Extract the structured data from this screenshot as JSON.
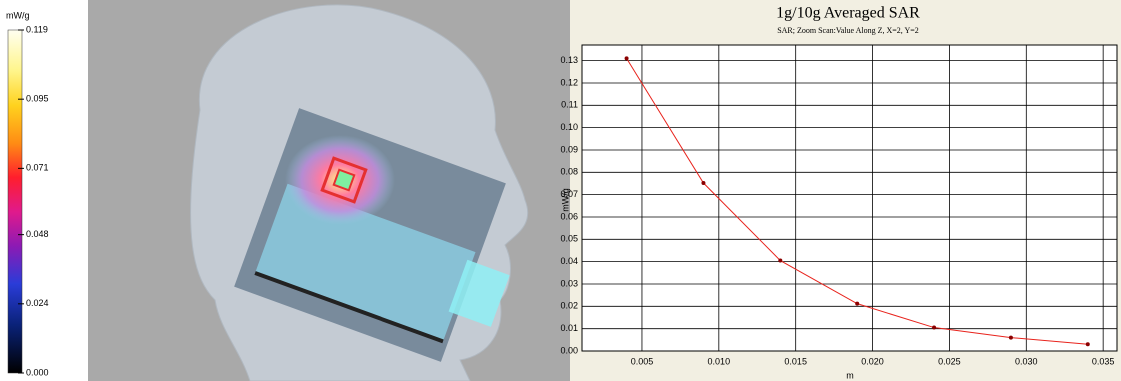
{
  "colorbar": {
    "unit": "mW/g",
    "lim": [
      0,
      0.119
    ],
    "ticks": [
      0.119,
      0.095,
      0.071,
      0.048,
      0.024,
      {
        "value": 0,
        "label": "0.000"
      }
    ]
  },
  "chart_data": {
    "type": "line",
    "title": "1g/10g Averaged SAR",
    "subtitle": "SAR; Zoom Scan:Value Along Z, X=2, Y=2",
    "xlabel": "m",
    "ylabel": "mW/g",
    "x": [
      0.004,
      0.009,
      0.014,
      0.019,
      0.024,
      0.029,
      0.034
    ],
    "series": [
      {
        "name": "SAR",
        "color": "#e8231c",
        "values": [
          0.131,
          0.0752,
          0.0405,
          0.0212,
          0.0105,
          0.006,
          0.003
        ]
      }
    ],
    "xlim": [
      0.0011,
      0.0359
    ],
    "ylim": [
      0,
      0.137
    ],
    "xticks": [
      0.005,
      {
        "value": 0.01,
        "label": "0.010"
      },
      0.015,
      {
        "value": 0.02,
        "label": "0.020"
      },
      0.025,
      {
        "value": 0.03,
        "label": "0.030"
      },
      0.035
    ],
    "yticks": [
      {
        "value": 0,
        "label": "0.00"
      },
      0.01,
      0.02,
      0.03,
      0.04,
      0.05,
      0.06,
      0.07,
      0.08,
      0.09,
      {
        "value": 0.1,
        "label": "0.10"
      },
      0.11,
      0.12,
      0.13
    ],
    "grid": true
  }
}
